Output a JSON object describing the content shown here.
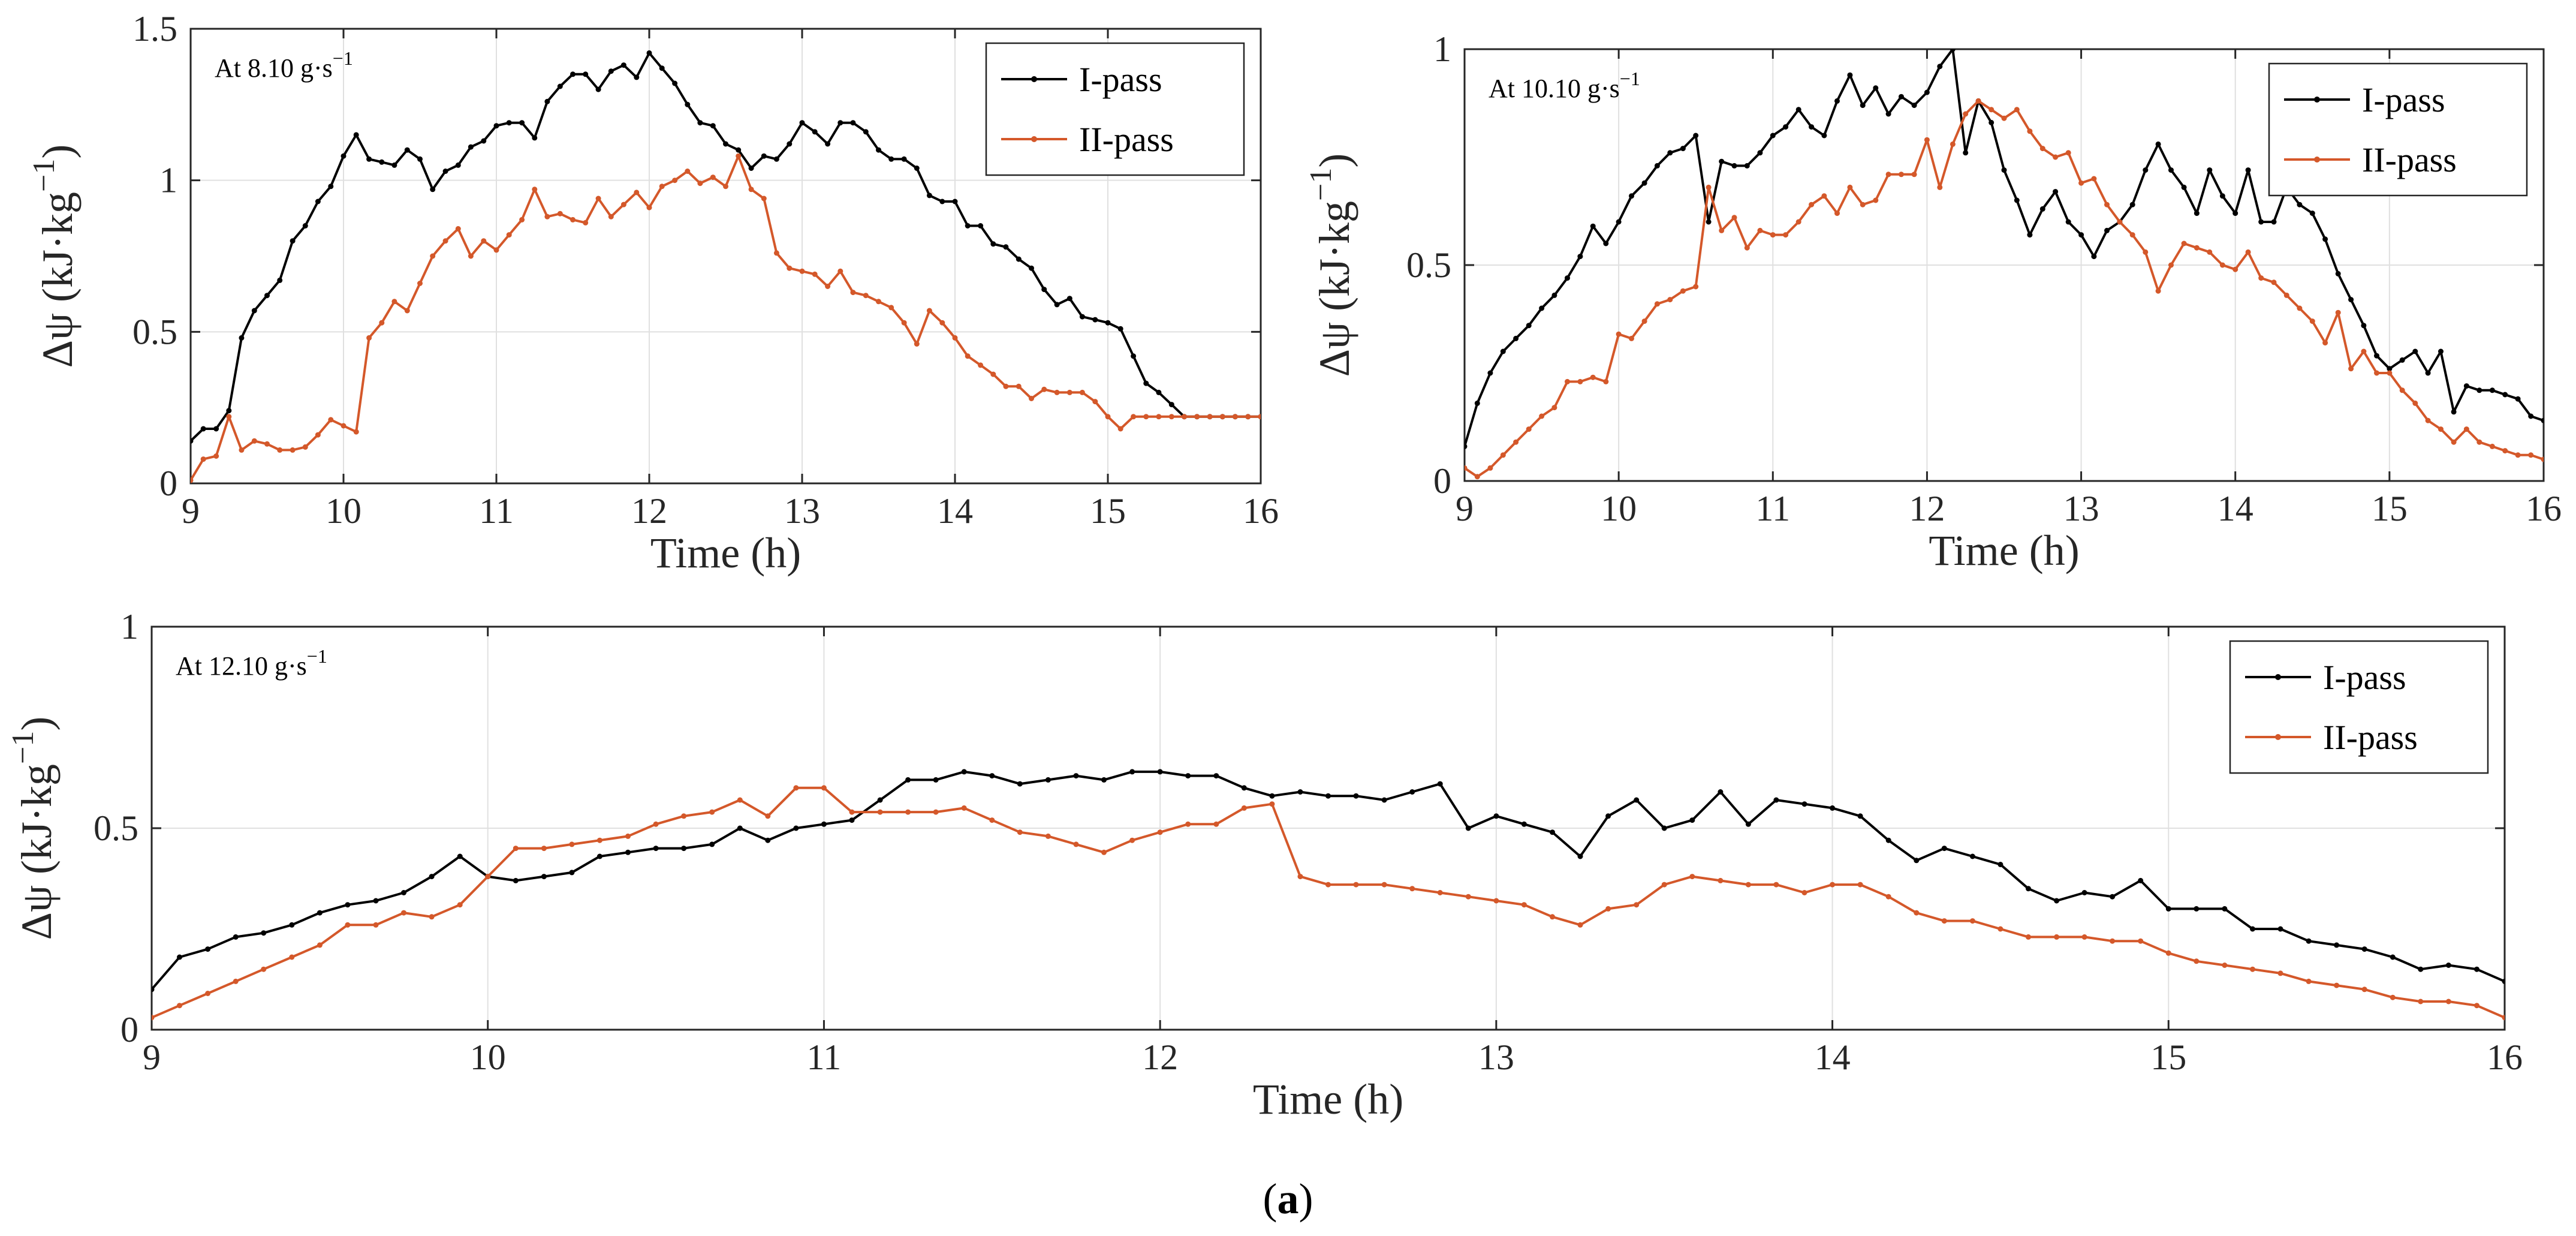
{
  "chart_data": [
    {
      "type": "line",
      "annotation": "At  8.10 g·s",
      "annotation_sup": "−1",
      "xlabel": "Time (h)",
      "ylabel_prefix": "Δψ (kJ·kg",
      "ylabel_sup": "−1",
      "ylabel_suffix": ")",
      "xlim": [
        9,
        16
      ],
      "ylim": [
        0,
        1.5
      ],
      "xticks": [
        9,
        10,
        11,
        12,
        13,
        14,
        15,
        16
      ],
      "yticks": [
        0,
        0.5,
        1,
        1.5
      ],
      "ytick_labels": [
        "0",
        "0.5",
        "1",
        "1.5"
      ],
      "legend_position": "top-right",
      "x": [
        9.0,
        9.083,
        9.167,
        9.25,
        9.333,
        9.417,
        9.5,
        9.583,
        9.667,
        9.75,
        9.833,
        9.917,
        10.0,
        10.083,
        10.167,
        10.25,
        10.333,
        10.417,
        10.5,
        10.583,
        10.667,
        10.75,
        10.833,
        10.917,
        11.0,
        11.083,
        11.167,
        11.25,
        11.333,
        11.417,
        11.5,
        11.583,
        11.667,
        11.75,
        11.833,
        11.917,
        12.0,
        12.083,
        12.167,
        12.25,
        12.333,
        12.417,
        12.5,
        12.583,
        12.667,
        12.75,
        12.833,
        12.917,
        13.0,
        13.083,
        13.167,
        13.25,
        13.333,
        13.417,
        13.5,
        13.583,
        13.667,
        13.75,
        13.833,
        13.917,
        14.0,
        14.083,
        14.167,
        14.25,
        14.333,
        14.417,
        14.5,
        14.583,
        14.667,
        14.75,
        14.833,
        14.917,
        15.0,
        15.083,
        15.167,
        15.25,
        15.333,
        15.417,
        15.5,
        15.583,
        15.667,
        15.75,
        15.833,
        15.917,
        16.0
      ],
      "series": [
        {
          "name": "I-pass",
          "color": "#000000",
          "values": [
            0.14,
            0.18,
            0.18,
            0.24,
            0.48,
            0.57,
            0.62,
            0.67,
            0.8,
            0.85,
            0.93,
            0.98,
            1.08,
            1.15,
            1.07,
            1.06,
            1.05,
            1.1,
            1.07,
            0.97,
            1.03,
            1.05,
            1.11,
            1.13,
            1.18,
            1.19,
            1.19,
            1.14,
            1.26,
            1.31,
            1.35,
            1.35,
            1.3,
            1.36,
            1.38,
            1.34,
            1.42,
            1.37,
            1.32,
            1.25,
            1.19,
            1.18,
            1.12,
            1.1,
            1.04,
            1.08,
            1.07,
            1.12,
            1.19,
            1.16,
            1.12,
            1.19,
            1.19,
            1.16,
            1.1,
            1.07,
            1.07,
            1.04,
            0.95,
            0.93,
            0.93,
            0.85,
            0.85,
            0.79,
            0.78,
            0.74,
            0.71,
            0.64,
            0.59,
            0.61,
            0.55,
            0.54,
            0.53,
            0.51,
            0.42,
            0.33,
            0.3,
            0.26,
            0.22,
            0.22,
            0.22,
            0.22,
            0.22,
            0.22,
            0.22
          ]
        },
        {
          "name": "II-pass",
          "color": "#d4582a",
          "values": [
            0.01,
            0.08,
            0.09,
            0.22,
            0.11,
            0.14,
            0.13,
            0.11,
            0.11,
            0.12,
            0.16,
            0.21,
            0.19,
            0.17,
            0.48,
            0.53,
            0.6,
            0.57,
            0.66,
            0.75,
            0.8,
            0.84,
            0.75,
            0.8,
            0.77,
            0.82,
            0.87,
            0.97,
            0.88,
            0.89,
            0.87,
            0.86,
            0.94,
            0.88,
            0.92,
            0.96,
            0.91,
            0.98,
            1.0,
            1.03,
            0.99,
            1.01,
            0.98,
            1.08,
            0.97,
            0.94,
            0.76,
            0.71,
            0.7,
            0.69,
            0.65,
            0.7,
            0.63,
            0.62,
            0.6,
            0.58,
            0.53,
            0.46,
            0.57,
            0.53,
            0.48,
            0.42,
            0.39,
            0.36,
            0.32,
            0.32,
            0.28,
            0.31,
            0.3,
            0.3,
            0.3,
            0.27,
            0.22,
            0.18,
            0.22,
            0.22,
            0.22,
            0.22,
            0.22,
            0.22,
            0.22,
            0.22,
            0.22,
            0.22,
            0.22
          ]
        }
      ]
    },
    {
      "type": "line",
      "annotation": "At 10.10 g·s",
      "annotation_sup": "−1",
      "xlabel": "Time (h)",
      "ylabel_prefix": "Δψ (kJ·kg",
      "ylabel_sup": "−1",
      "ylabel_suffix": ")",
      "xlim": [
        9,
        16
      ],
      "ylim": [
        0,
        1
      ],
      "xticks": [
        9,
        10,
        11,
        12,
        13,
        14,
        15,
        16
      ],
      "yticks": [
        0,
        0.5,
        1
      ],
      "ytick_labels": [
        "0",
        "0.5",
        "1"
      ],
      "legend_position": "top-right",
      "x": [
        9.0,
        9.083,
        9.167,
        9.25,
        9.333,
        9.417,
        9.5,
        9.583,
        9.667,
        9.75,
        9.833,
        9.917,
        10.0,
        10.083,
        10.167,
        10.25,
        10.333,
        10.417,
        10.5,
        10.583,
        10.667,
        10.75,
        10.833,
        10.917,
        11.0,
        11.083,
        11.167,
        11.25,
        11.333,
        11.417,
        11.5,
        11.583,
        11.667,
        11.75,
        11.833,
        11.917,
        12.0,
        12.083,
        12.167,
        12.25,
        12.333,
        12.417,
        12.5,
        12.583,
        12.667,
        12.75,
        12.833,
        12.917,
        13.0,
        13.083,
        13.167,
        13.25,
        13.333,
        13.417,
        13.5,
        13.583,
        13.667,
        13.75,
        13.833,
        13.917,
        14.0,
        14.083,
        14.167,
        14.25,
        14.333,
        14.417,
        14.5,
        14.583,
        14.667,
        14.75,
        14.833,
        14.917,
        15.0,
        15.083,
        15.167,
        15.25,
        15.333,
        15.417,
        15.5,
        15.583,
        15.667,
        15.75,
        15.833,
        15.917,
        16.0
      ],
      "series": [
        {
          "name": "I-pass",
          "color": "#000000",
          "values": [
            0.08,
            0.18,
            0.25,
            0.3,
            0.33,
            0.36,
            0.4,
            0.43,
            0.47,
            0.52,
            0.59,
            0.55,
            0.6,
            0.66,
            0.69,
            0.73,
            0.76,
            0.77,
            0.8,
            0.6,
            0.74,
            0.73,
            0.73,
            0.76,
            0.8,
            0.82,
            0.86,
            0.82,
            0.8,
            0.88,
            0.94,
            0.87,
            0.91,
            0.85,
            0.89,
            0.87,
            0.9,
            0.96,
            1.0,
            0.76,
            0.88,
            0.83,
            0.72,
            0.65,
            0.57,
            0.63,
            0.67,
            0.6,
            0.57,
            0.52,
            0.58,
            0.6,
            0.64,
            0.72,
            0.78,
            0.72,
            0.68,
            0.62,
            0.72,
            0.66,
            0.62,
            0.72,
            0.6,
            0.6,
            0.68,
            0.64,
            0.62,
            0.56,
            0.48,
            0.42,
            0.36,
            0.29,
            0.26,
            0.28,
            0.3,
            0.25,
            0.3,
            0.16,
            0.22,
            0.21,
            0.21,
            0.2,
            0.19,
            0.15,
            0.14
          ]
        },
        {
          "name": "II-pass",
          "color": "#d4582a",
          "values": [
            0.03,
            0.01,
            0.03,
            0.06,
            0.09,
            0.12,
            0.15,
            0.17,
            0.23,
            0.23,
            0.24,
            0.23,
            0.34,
            0.33,
            0.37,
            0.41,
            0.42,
            0.44,
            0.45,
            0.68,
            0.58,
            0.61,
            0.54,
            0.58,
            0.57,
            0.57,
            0.6,
            0.64,
            0.66,
            0.62,
            0.68,
            0.64,
            0.65,
            0.71,
            0.71,
            0.71,
            0.79,
            0.68,
            0.78,
            0.85,
            0.88,
            0.86,
            0.84,
            0.86,
            0.81,
            0.77,
            0.75,
            0.76,
            0.69,
            0.7,
            0.64,
            0.6,
            0.57,
            0.53,
            0.44,
            0.5,
            0.55,
            0.54,
            0.53,
            0.5,
            0.49,
            0.53,
            0.47,
            0.46,
            0.43,
            0.4,
            0.37,
            0.32,
            0.39,
            0.26,
            0.3,
            0.25,
            0.25,
            0.21,
            0.18,
            0.14,
            0.12,
            0.09,
            0.12,
            0.09,
            0.08,
            0.07,
            0.06,
            0.06,
            0.05
          ]
        }
      ]
    },
    {
      "type": "line",
      "annotation": "At 12.10 g·s",
      "annotation_sup": "−1",
      "xlabel": "Time (h)",
      "ylabel_prefix": "Δψ (kJ·kg",
      "ylabel_sup": "−1",
      "ylabel_suffix": ")",
      "xlim": [
        9,
        16
      ],
      "ylim": [
        0,
        1
      ],
      "xticks": [
        9,
        10,
        11,
        12,
        13,
        14,
        15,
        16
      ],
      "yticks": [
        0,
        0.5,
        1
      ],
      "ytick_labels": [
        "0",
        "0.5",
        "1"
      ],
      "legend_position": "top-right",
      "x": [
        9.0,
        9.083,
        9.167,
        9.25,
        9.333,
        9.417,
        9.5,
        9.583,
        9.667,
        9.75,
        9.833,
        9.917,
        10.0,
        10.083,
        10.167,
        10.25,
        10.333,
        10.417,
        10.5,
        10.583,
        10.667,
        10.75,
        10.833,
        10.917,
        11.0,
        11.083,
        11.167,
        11.25,
        11.333,
        11.417,
        11.5,
        11.583,
        11.667,
        11.75,
        11.833,
        11.917,
        12.0,
        12.083,
        12.167,
        12.25,
        12.333,
        12.417,
        12.5,
        12.583,
        12.667,
        12.75,
        12.833,
        12.917,
        13.0,
        13.083,
        13.167,
        13.25,
        13.333,
        13.417,
        13.5,
        13.583,
        13.667,
        13.75,
        13.833,
        13.917,
        14.0,
        14.083,
        14.167,
        14.25,
        14.333,
        14.417,
        14.5,
        14.583,
        14.667,
        14.75,
        14.833,
        14.917,
        15.0,
        15.083,
        15.167,
        15.25,
        15.333,
        15.417,
        15.5,
        15.583,
        15.667,
        15.75,
        15.833,
        15.917,
        16.0
      ],
      "series": [
        {
          "name": "I-pass",
          "color": "#000000",
          "values": [
            0.1,
            0.18,
            0.2,
            0.23,
            0.24,
            0.26,
            0.29,
            0.31,
            0.32,
            0.34,
            0.38,
            0.43,
            0.38,
            0.37,
            0.38,
            0.39,
            0.43,
            0.44,
            0.45,
            0.45,
            0.46,
            0.5,
            0.47,
            0.5,
            0.51,
            0.52,
            0.57,
            0.62,
            0.62,
            0.64,
            0.63,
            0.61,
            0.62,
            0.63,
            0.62,
            0.64,
            0.64,
            0.63,
            0.63,
            0.6,
            0.58,
            0.59,
            0.58,
            0.58,
            0.57,
            0.59,
            0.61,
            0.5,
            0.53,
            0.51,
            0.49,
            0.43,
            0.53,
            0.57,
            0.5,
            0.52,
            0.59,
            0.51,
            0.57,
            0.56,
            0.55,
            0.53,
            0.47,
            0.42,
            0.45,
            0.43,
            0.41,
            0.35,
            0.32,
            0.34,
            0.33,
            0.37,
            0.3,
            0.3,
            0.3,
            0.25,
            0.25,
            0.22,
            0.21,
            0.2,
            0.18,
            0.15,
            0.16,
            0.15,
            0.12
          ]
        },
        {
          "name": "II-pass",
          "color": "#d4582a",
          "values": [
            0.03,
            0.06,
            0.09,
            0.12,
            0.15,
            0.18,
            0.21,
            0.26,
            0.26,
            0.29,
            0.28,
            0.31,
            0.38,
            0.45,
            0.45,
            0.46,
            0.47,
            0.48,
            0.51,
            0.53,
            0.54,
            0.57,
            0.53,
            0.6,
            0.6,
            0.54,
            0.54,
            0.54,
            0.54,
            0.55,
            0.52,
            0.49,
            0.48,
            0.46,
            0.44,
            0.47,
            0.49,
            0.51,
            0.51,
            0.55,
            0.56,
            0.38,
            0.36,
            0.36,
            0.36,
            0.35,
            0.34,
            0.33,
            0.32,
            0.31,
            0.28,
            0.26,
            0.3,
            0.31,
            0.36,
            0.38,
            0.37,
            0.36,
            0.36,
            0.34,
            0.36,
            0.36,
            0.33,
            0.29,
            0.27,
            0.27,
            0.25,
            0.23,
            0.23,
            0.23,
            0.22,
            0.22,
            0.19,
            0.17,
            0.16,
            0.15,
            0.14,
            0.12,
            0.11,
            0.1,
            0.08,
            0.07,
            0.07,
            0.06,
            0.03
          ]
        }
      ]
    }
  ],
  "caption": "a"
}
